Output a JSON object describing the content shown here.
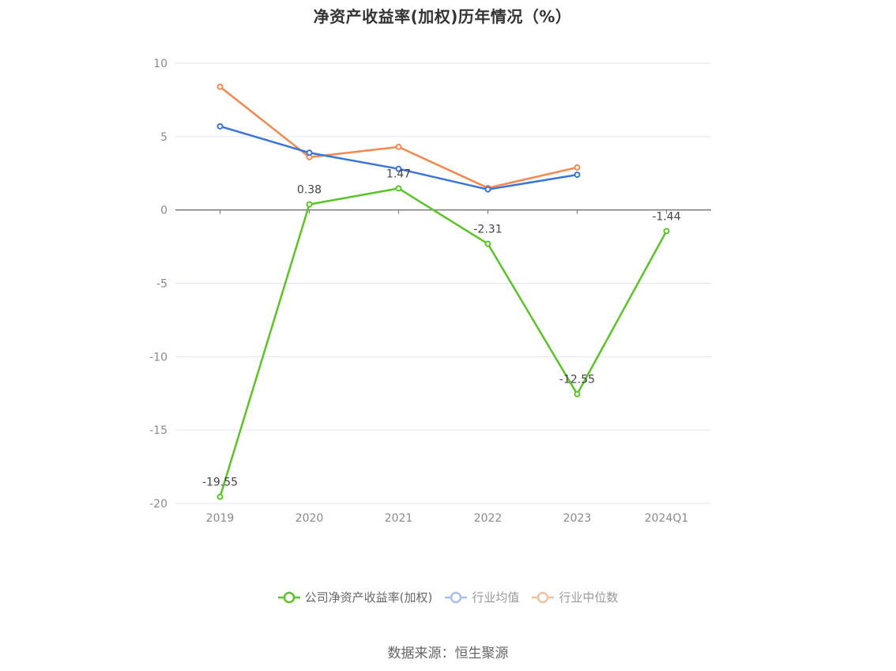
{
  "chart_data": {
    "type": "line",
    "title": "净资产收益率(加权)历年情况（%）",
    "categories": [
      "2019",
      "2020",
      "2021",
      "2022",
      "2023",
      "2024Q1"
    ],
    "ylim": [
      -20,
      10
    ],
    "yticks": [
      "10",
      "5",
      "0",
      "-5",
      "-10",
      "-15",
      "-20"
    ],
    "grid": true,
    "legend_position": "bottom-center",
    "series": [
      {
        "name": "公司净资产收益率(加权)",
        "color": "#5ac427",
        "values": [
          -19.55,
          0.38,
          1.47,
          -2.31,
          -12.55,
          -1.44
        ],
        "labels": [
          "-19.55",
          "0.38",
          "1.47",
          "-2.31",
          "-12.55",
          "-1.44"
        ]
      },
      {
        "name": "行业均值",
        "color": "#3b74db",
        "values": [
          5.7,
          3.9,
          2.8,
          1.4,
          2.4,
          null
        ]
      },
      {
        "name": "行业中位数",
        "color": "#f5874f",
        "values": [
          8.4,
          3.6,
          4.3,
          1.5,
          2.9,
          null
        ]
      }
    ]
  },
  "legend": {
    "items": [
      {
        "label": "公司净资产收益率(加权)",
        "color": "#5ac427",
        "active": true
      },
      {
        "label": "行业均值",
        "color": "#a7c0ec",
        "active": false
      },
      {
        "label": "行业中位数",
        "color": "#f9bfa3",
        "active": false
      }
    ]
  },
  "source": "数据来源：恒生聚源"
}
